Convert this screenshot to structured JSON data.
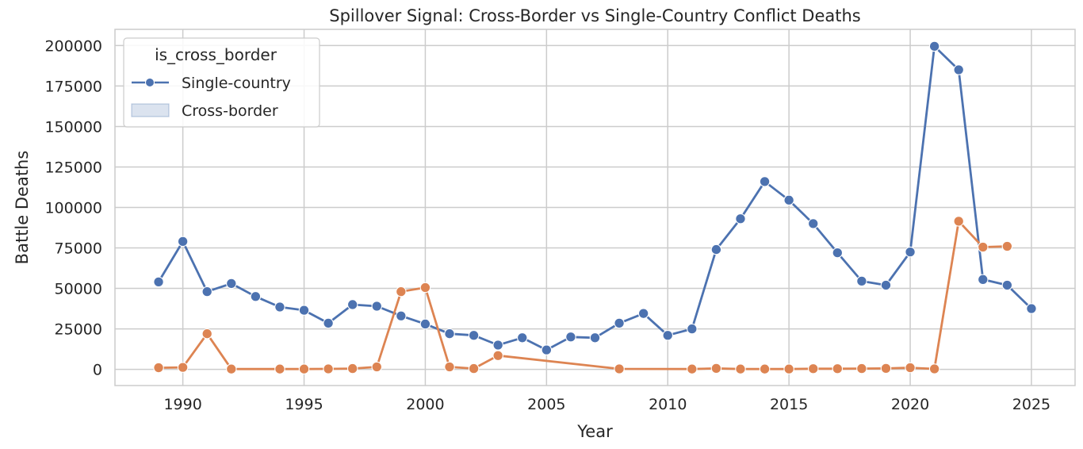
{
  "chart_data": {
    "type": "line",
    "title": "Spillover Signal: Cross-Border vs Single-Country Conflict Deaths",
    "xlabel": "Year",
    "ylabel": "Battle Deaths",
    "xlim": [
      1987.2,
      2026.8
    ],
    "ylim": [
      -10000,
      210000
    ],
    "xticks": [
      1990,
      1995,
      2000,
      2005,
      2010,
      2015,
      2020,
      2025
    ],
    "yticks": [
      0,
      25000,
      50000,
      75000,
      100000,
      125000,
      150000,
      175000,
      200000
    ],
    "grid": true,
    "legend": {
      "title": "is_cross_border",
      "placement": "top-left",
      "entries": [
        {
          "label": "Single-country",
          "marker": "line-with-dot",
          "color": "#4c72b0"
        },
        {
          "label": "Cross-border",
          "marker": "patch",
          "color": "#4c72b0"
        }
      ]
    },
    "series": [
      {
        "color": "#4c72b0",
        "x": [
          1989,
          1990,
          1991,
          1992,
          1993,
          1994,
          1995,
          1996,
          1997,
          1998,
          1999,
          2000,
          2001,
          2002,
          2003,
          2004,
          2005,
          2006,
          2007,
          2008,
          2009,
          2010,
          2011,
          2012,
          2013,
          2014,
          2015,
          2016,
          2017,
          2018,
          2019,
          2020,
          2021,
          2022,
          2023,
          2024,
          2025
        ],
        "values": [
          54000,
          79000,
          48000,
          53000,
          45000,
          38500,
          36500,
          28500,
          40000,
          39000,
          33000,
          28000,
          22000,
          21000,
          15000,
          19500,
          12000,
          20000,
          19500,
          28500,
          34500,
          21000,
          25000,
          74000,
          93000,
          116000,
          104500,
          90000,
          72000,
          54500,
          52000,
          72500,
          199500,
          185000,
          55500,
          52000,
          37500
        ]
      },
      {
        "color": "#dd8452",
        "x": [
          1989,
          1990,
          1991,
          1992,
          1994,
          1995,
          1996,
          1997,
          1998,
          1999,
          2000,
          2001,
          2002,
          2003,
          2008,
          2011,
          2012,
          2013,
          2014,
          2015,
          2016,
          2017,
          2018,
          2019,
          2020,
          2021,
          2022,
          2023,
          2024
        ],
        "values": [
          1000,
          1200,
          22000,
          200,
          200,
          200,
          300,
          500,
          1500,
          48000,
          50500,
          1500,
          500,
          8500,
          300,
          200,
          600,
          200,
          200,
          200,
          400,
          400,
          500,
          600,
          1000,
          300,
          91500,
          75500,
          76000
        ]
      }
    ]
  }
}
